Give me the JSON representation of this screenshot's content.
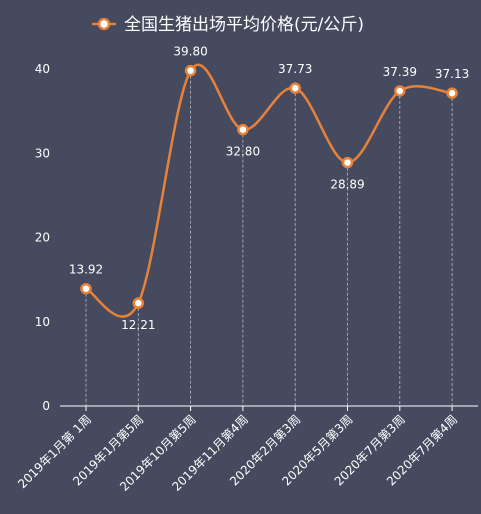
{
  "colors": {
    "background": "#454A5F",
    "line": "#E8823A",
    "marker_fill": "#FFFFFF",
    "dropline": "#B9BCC6",
    "axis": "#FFFFFF",
    "text": "#FFFFFF"
  },
  "chart_data": {
    "type": "line",
    "smooth": true,
    "title": "",
    "xlabel": "",
    "ylabel": "",
    "legend_position": "top-center",
    "grid": false,
    "drop_lines": true,
    "ylim": [
      0,
      40
    ],
    "yticks": [
      0,
      10,
      20,
      30,
      40
    ],
    "categories": [
      "2019年1月第 1周",
      "2019年1月第5周",
      "2019年10月第5周",
      "2019年11月第4周",
      "2020年2月第3周",
      "2020年5月第3周",
      "2020年7月第3周",
      "2020年7月第4周"
    ],
    "series": [
      {
        "name": "全国生猪出场平均价格(元/公斤)",
        "values": [
          13.92,
          12.21,
          39.8,
          32.8,
          37.73,
          28.89,
          37.39,
          37.13
        ],
        "labels": [
          "13.92",
          "12.21",
          "39.80",
          "32.80",
          "37.73",
          "28.89",
          "37.39",
          "37.13"
        ]
      }
    ]
  }
}
